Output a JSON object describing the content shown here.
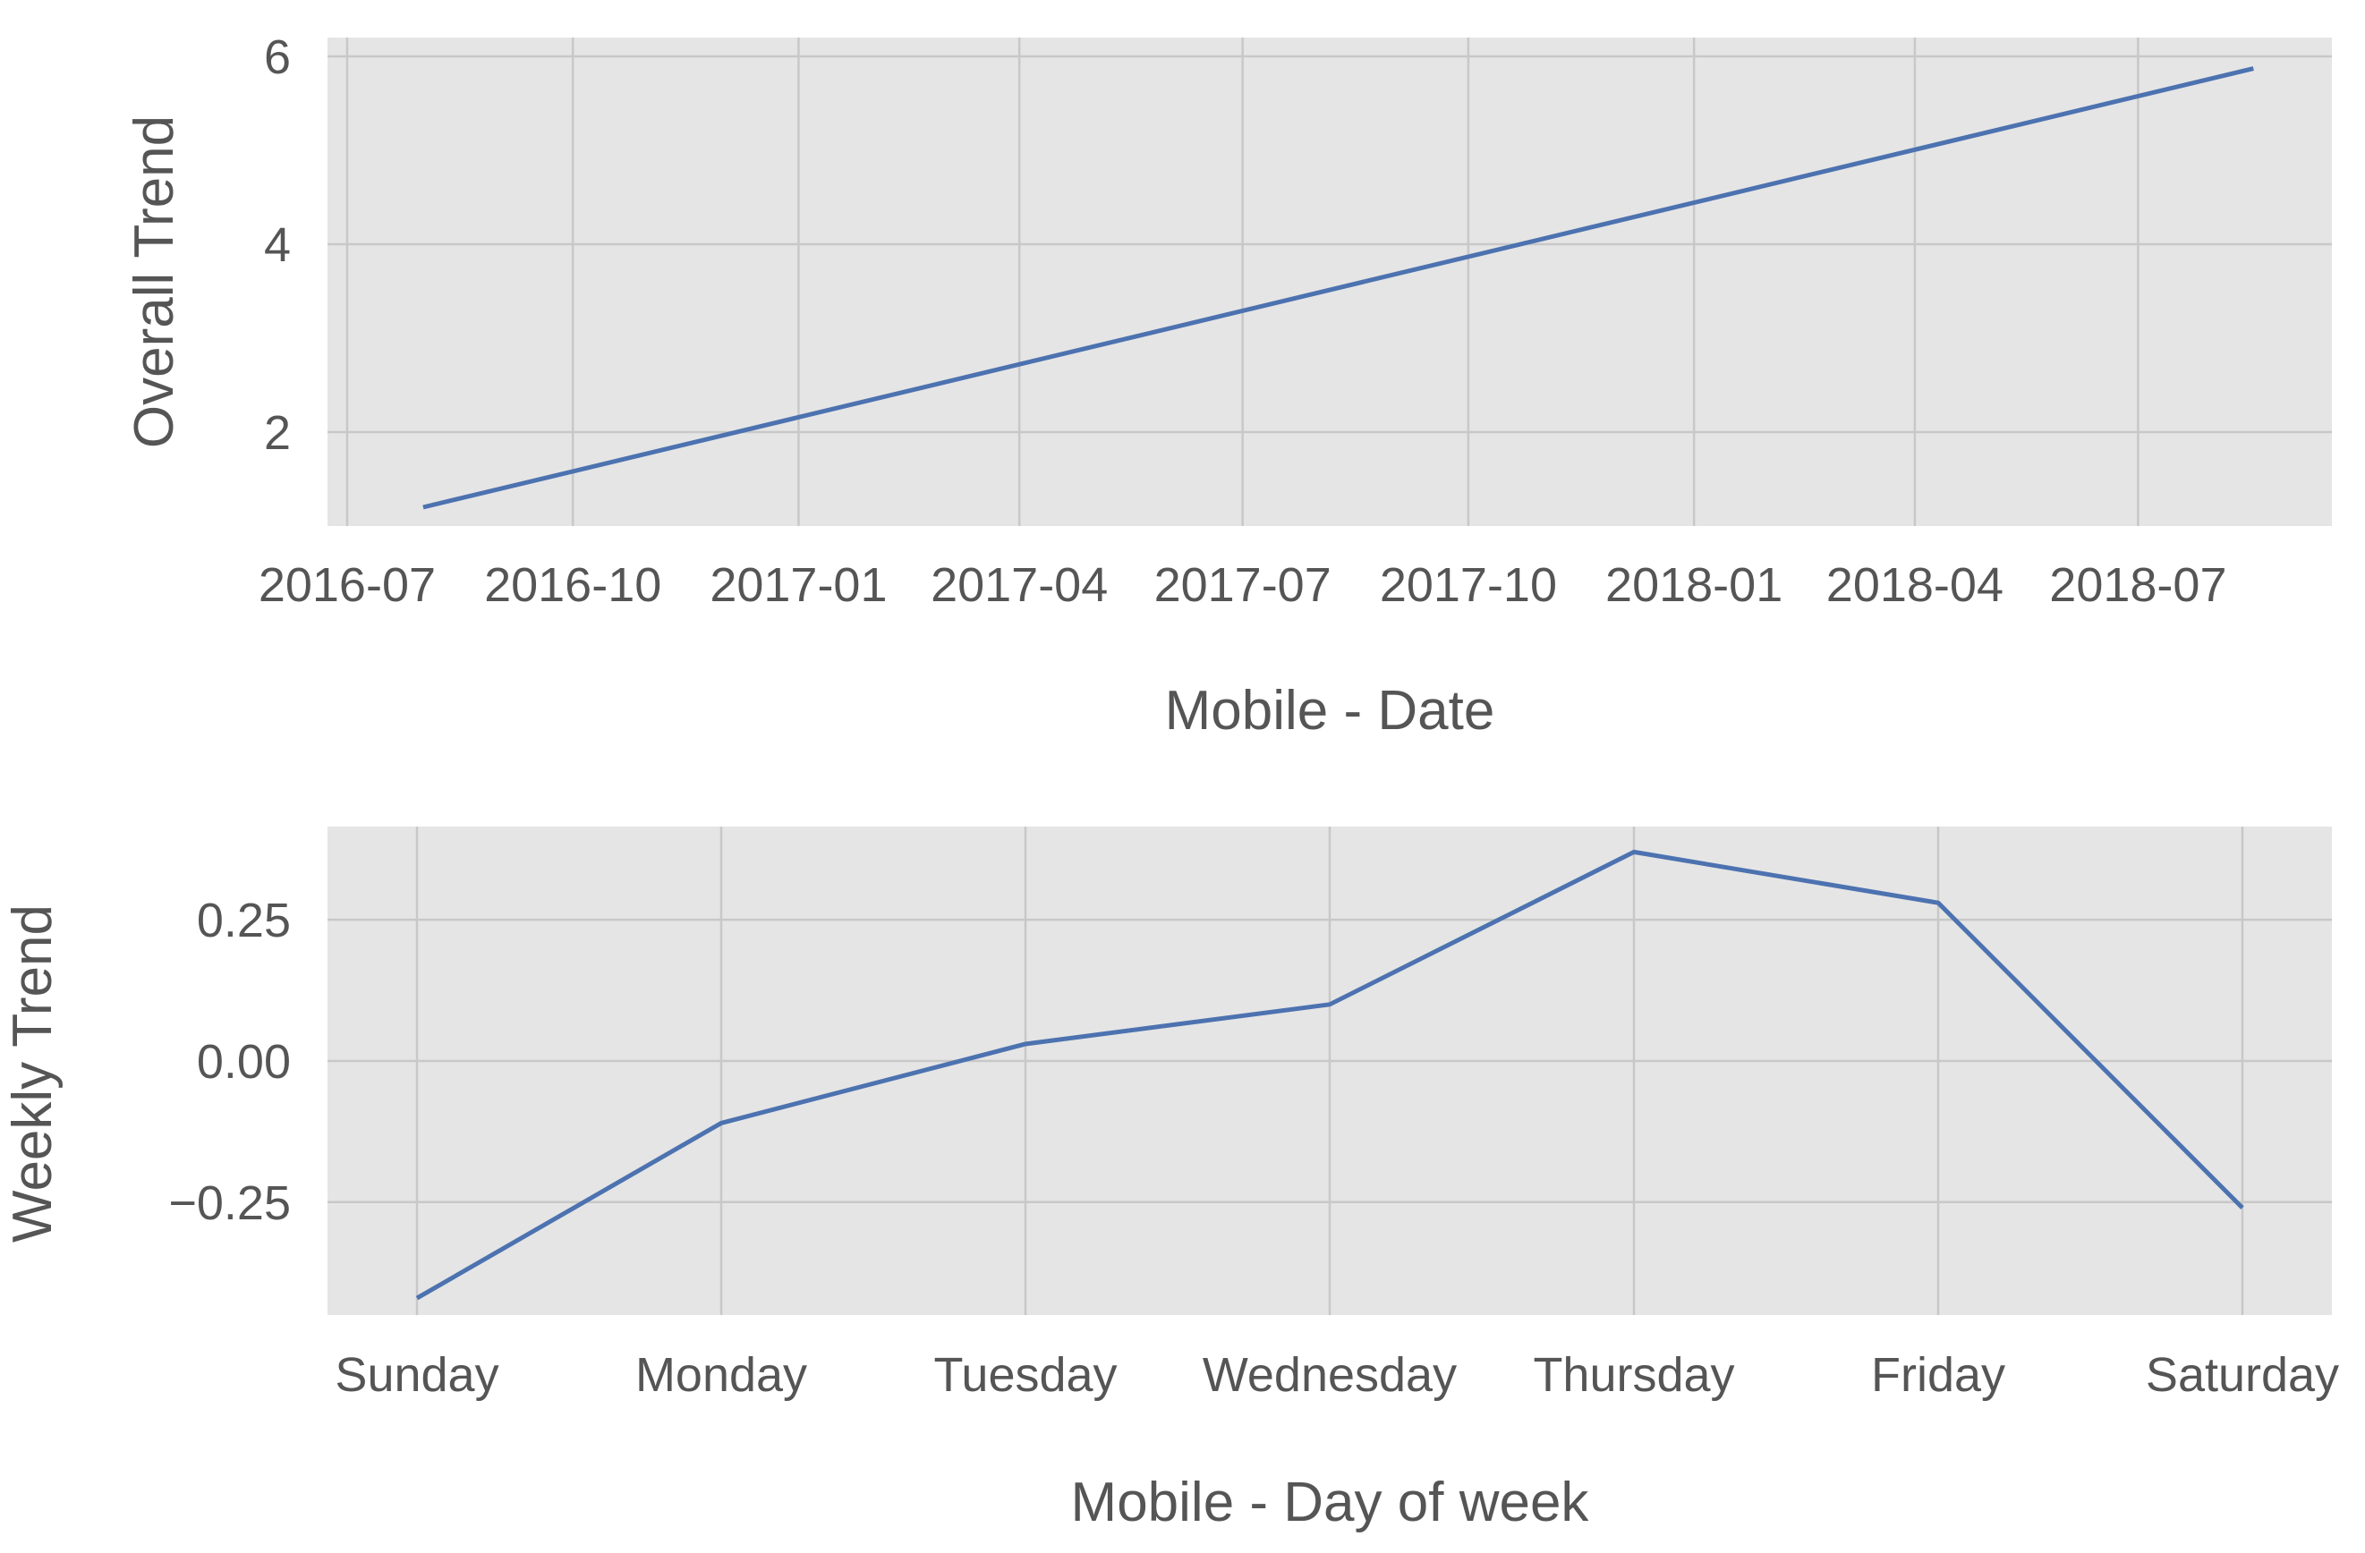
{
  "chart_data": [
    {
      "type": "line",
      "title": "",
      "xlabel": "Mobile - Date",
      "ylabel": "Overall Trend",
      "x_is_date": true,
      "x_ticks": [
        "2016-07",
        "2016-10",
        "2017-01",
        "2017-04",
        "2017-07",
        "2017-10",
        "2018-01",
        "2018-04",
        "2018-07"
      ],
      "xlim": [
        "2016-06-23",
        "2018-09-18"
      ],
      "ylim": [
        1.0,
        6.2
      ],
      "y_ticks": [
        2,
        4,
        6
      ],
      "y_tick_labels": [
        "2",
        "4",
        "6"
      ],
      "grid": true,
      "series": [
        {
          "x": [
            "2016-08-01",
            "2018-08-17"
          ],
          "y": [
            1.2,
            5.87
          ],
          "color": "#4c72b0"
        }
      ]
    },
    {
      "type": "line",
      "title": "",
      "xlabel": "Mobile - Day of week",
      "ylabel": "Weekly Trend",
      "categories": [
        "Sunday",
        "Monday",
        "Tuesday",
        "Wednesday",
        "Thursday",
        "Friday",
        "Saturday"
      ],
      "ylim": [
        -0.45,
        0.415
      ],
      "y_ticks": [
        0.25,
        0.0,
        -0.25
      ],
      "y_tick_labels": [
        "0.25",
        "0.00",
        "−0.25"
      ],
      "grid": true,
      "series": [
        {
          "values": [
            -0.42,
            -0.11,
            0.03,
            0.1,
            0.37,
            0.28,
            -0.26
          ],
          "color": "#4c72b0"
        }
      ]
    }
  ],
  "colors": {
    "panel_background": "#e5e5e5",
    "grid": "#c8c8c8",
    "line": "#4c72b0",
    "text": "#555555"
  }
}
